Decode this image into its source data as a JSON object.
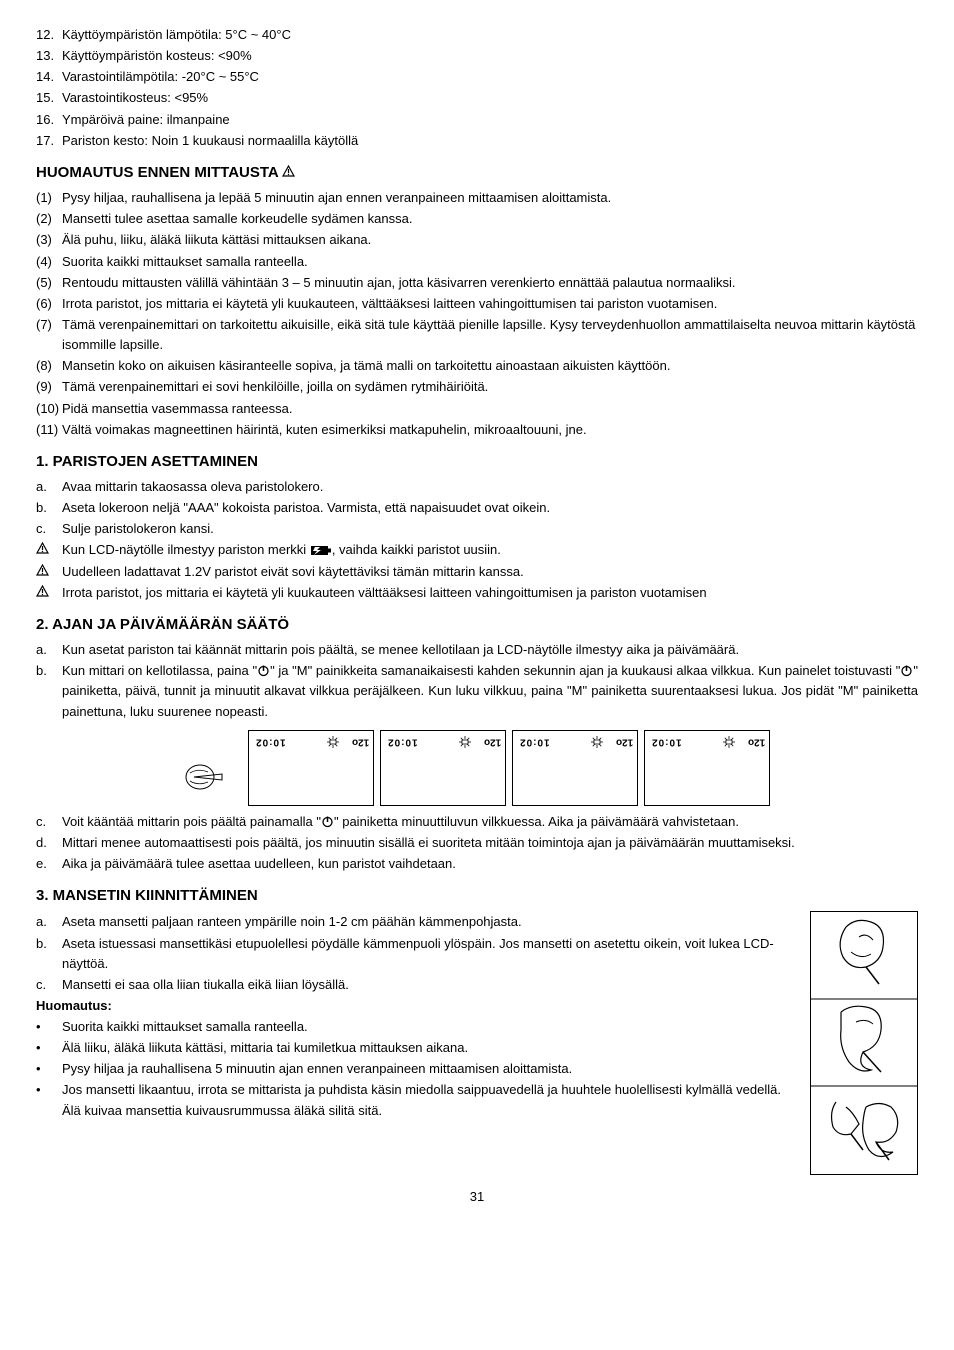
{
  "specs": [
    {
      "n": "12.",
      "t": "Käyttöympäristön lämpötila: 5°C ~ 40°C"
    },
    {
      "n": "13.",
      "t": "Käyttöympäristön kosteus: <90%"
    },
    {
      "n": "14.",
      "t": "Varastointilämpötila: -20°C ~ 55°C"
    },
    {
      "n": "15.",
      "t": "Varastointikosteus: <95%"
    },
    {
      "n": "16.",
      "t": "Ympäröivä paine: ilmanpaine"
    },
    {
      "n": "17.",
      "t": "Pariston kesto: Noin 1 kuukausi normaalilla käytöllä"
    }
  ],
  "h_warn": "HUOMAUTUS ENNEN MITTAUSTA",
  "warn": [
    {
      "n": "(1)",
      "t": "Pysy hiljaa, rauhallisena ja lepää 5 minuutin ajan ennen veranpaineen mittaamisen aloittamista."
    },
    {
      "n": "(2)",
      "t": "Mansetti tulee asettaa samalle korkeudelle sydämen kanssa."
    },
    {
      "n": "(3)",
      "t": "Älä puhu, liiku, äläkä liikuta kättäsi mittauksen aikana."
    },
    {
      "n": "(4)",
      "t": "Suorita kaikki mittaukset samalla ranteella."
    },
    {
      "n": "(5)",
      "t": "Rentoudu mittausten välillä vähintään 3 – 5 minuutin ajan, jotta käsivarren verenkierto ennättää palautua normaaliksi."
    },
    {
      "n": "(6)",
      "t": "Irrota paristot, jos mittaria ei käytetä yli kuukauteen, välttääksesi laitteen vahingoittumisen tai pariston vuotamisen."
    },
    {
      "n": "(7)",
      "t": "Tämä verenpainemittari on tarkoitettu aikuisille, eikä sitä tule käyttää pienille lapsille. Kysy terveydenhuollon ammattilaiselta neuvoa mittarin käytöstä isommille lapsille."
    },
    {
      "n": "(8)",
      "t": "Mansetin koko on aikuisen käsiranteelle sopiva, ja tämä malli on tarkoitettu ainoastaan aikuisten käyttöön."
    },
    {
      "n": "(9)",
      "t": "Tämä verenpainemittari ei sovi henkilöille, joilla on sydämen rytmihäiriöitä."
    },
    {
      "n": "(10)",
      "t": "Pidä mansettia vasemmassa ranteessa."
    },
    {
      "n": "(11)",
      "t": "Vältä voimakas magneettinen häirintä, kuten esimerkiksi matkapuhelin, mikroaaltouuni, jne."
    }
  ],
  "h1": "1. PARISTOJEN ASETTAMINEN",
  "s1": [
    {
      "n": "a.",
      "t": "Avaa mittarin takaosassa oleva paristolokero."
    },
    {
      "n": "b.",
      "t": " Aseta lokeroon neljä \"AAA\" kokoista paristoa. Varmista, että napaisuudet ovat oikein."
    },
    {
      "n": "c.",
      "t": "Sulje paristolokeron kansi."
    }
  ],
  "s1w1a": "Kun LCD-näytölle ilmestyy pariston merkki ",
  "s1w1b": ", vaihda kaikki paristot uusiin.",
  "s1w2": "Uudelleen ladattavat 1.2V paristot eivät sovi käytettäviksi tämän mittarin kanssa.",
  "s1w3": "Irrota paristot, jos mittaria ei käytetä yli kuukauteen välttääksesi laitteen vahingoittumisen ja pariston vuotamisen",
  "h2": "2. AJAN JA PÄIVÄMÄÄRÄN SÄÄTÖ",
  "s2a": "Kun asetat pariston tai käännät mittarin pois päältä, se menee kellotilaan ja LCD-näytölle ilmestyy aika ja päivämäärä.",
  "s2b1": "Kun mittari on kellotilassa, paina \"",
  "s2b2": "\" ja \"M\" painikkeita samanaikaisesti kahden sekunnin ajan ja kuukausi alkaa vilkkua. Kun painelet toistuvasti \"",
  "s2b3": "\" painiketta, päivä, tunnit ja minuutit alkavat vilkkua peräjälkeen. Kun luku vilkkuu, paina \"M\" painiketta suurentaaksesi lukua. Jos pidät \"M\" painiketta painettuna, luku suurenee nopeasti.",
  "lcd": [
    {
      "l": "10:02",
      "r": "12o"
    },
    {
      "l": "10:02",
      "r": "12o"
    },
    {
      "l": "10:02",
      "r": "12o"
    },
    {
      "l": "10:02",
      "r": "12o"
    }
  ],
  "s2c1": "Voit kääntää mittarin pois päältä painamalla \"",
  "s2c2": "\" painiketta minuuttiluvun vilkkuessa. Aika ja päivämäärä vahvistetaan.",
  "s2d": "Mittari menee automaattisesti pois päältä, jos minuutin sisällä ei suoriteta mitään toimintoja ajan ja päivämäärän muuttamiseksi.",
  "s2e": "Aika ja päivämäärä tulee asettaa uudelleen, kun paristot vaihdetaan.",
  "h3": "3. MANSETIN KIINNITTÄMINEN",
  "s3a": "Aseta mansetti paljaan ranteen ympärille noin 1-2 cm päähän kämmenpohjasta.",
  "s3b": "Aseta istuessasi mansettikäsi etupuolellesi pöydälle kämmenpuoli ylöspäin. Jos mansetti on asetettu oikein, voit lukea LCD-näyttöä.",
  "s3c": "Mansetti ei saa olla liian tiukalla eikä liian löysällä.",
  "note_h": "Huomautus:",
  "notes": [
    "Suorita kaikki mittaukset samalla ranteella.",
    "Älä liiku, äläkä liikuta kättäsi, mittaria tai kumiletkua mittauksen aikana.",
    "Pysy hiljaa ja rauhallisena 5 minuutin ajan ennen veranpaineen mittaamisen aloittamista.",
    "Jos mansetti likaantuu, irrota se mittarista ja puhdista käsin miedolla saippuavedellä ja huuhtele huolellisesti kylmällä vedellä. Älä kuivaa mansettia kuivausrummussa äläkä silitä sitä."
  ],
  "page": "31"
}
